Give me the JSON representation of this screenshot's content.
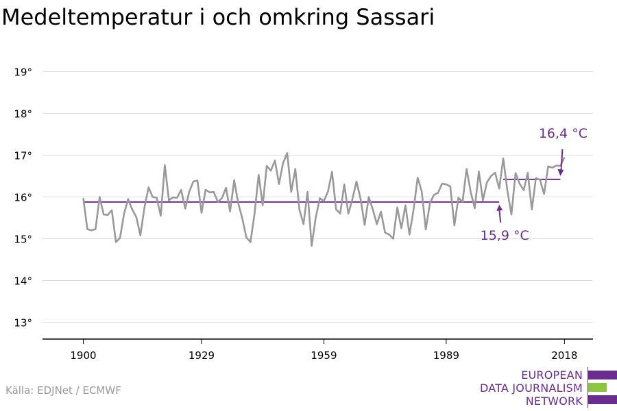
{
  "chart_data": {
    "type": "line",
    "title": "Medeltemperatur i och omkring Sassari",
    "x_ticks": [
      1900,
      1929,
      1959,
      1989,
      2018
    ],
    "x_tick_labels": [
      "1900",
      "1929",
      "1959",
      "1989",
      "2018"
    ],
    "y_ticks": [
      13,
      14,
      15,
      16,
      17,
      18,
      19
    ],
    "y_tick_labels": [
      "13°",
      "14°",
      "15°",
      "16°",
      "17°",
      "18°",
      "19°"
    ],
    "xlim": [
      1890,
      2025
    ],
    "ylim": [
      12.6,
      19.4
    ],
    "grid": true,
    "series": [
      {
        "x": [
          1900,
          1901,
          1902,
          1903,
          1904,
          1905,
          1906,
          1907,
          1908,
          1909,
          1910,
          1911,
          1912,
          1913,
          1914,
          1915,
          1916,
          1917,
          1918,
          1919,
          1920,
          1921,
          1922,
          1923,
          1924,
          1925,
          1926,
          1927,
          1928,
          1929,
          1930,
          1931,
          1932,
          1933,
          1934,
          1935,
          1936,
          1937,
          1938,
          1939,
          1940,
          1941,
          1942,
          1943,
          1944,
          1945,
          1946,
          1947,
          1948,
          1949,
          1950,
          1951,
          1952,
          1953,
          1954,
          1955,
          1956,
          1957,
          1958,
          1959,
          1960,
          1961,
          1962,
          1963,
          1964,
          1965,
          1966,
          1967,
          1968,
          1969,
          1970,
          1971,
          1972,
          1973,
          1974,
          1975,
          1976,
          1977,
          1978,
          1979,
          1980,
          1981,
          1982,
          1983,
          1984,
          1985,
          1986,
          1987,
          1988,
          1989,
          1990,
          1991,
          1992,
          1993,
          1994,
          1995,
          1996,
          1997,
          1998,
          1999,
          2000,
          2001,
          2002,
          2003,
          2004,
          2005,
          2006,
          2007,
          2008,
          2009,
          2010,
          2011,
          2012,
          2013,
          2014,
          2015,
          2016,
          2017,
          2018
        ],
        "values": [
          15.97,
          15.23,
          15.2,
          15.23,
          16.0,
          15.58,
          15.57,
          15.68,
          14.92,
          15.02,
          15.6,
          15.95,
          15.7,
          15.52,
          15.08,
          15.75,
          16.23,
          16.0,
          15.98,
          15.55,
          16.76,
          15.92,
          15.99,
          15.98,
          16.17,
          15.72,
          16.13,
          16.37,
          16.39,
          15.62,
          16.17,
          16.11,
          16.12,
          15.88,
          15.97,
          16.22,
          15.65,
          16.4,
          15.85,
          15.48,
          15.03,
          14.92,
          15.6,
          16.53,
          15.8,
          16.74,
          16.63,
          16.87,
          16.31,
          16.81,
          17.05,
          16.12,
          16.67,
          15.7,
          15.35,
          16.12,
          14.83,
          15.5,
          15.97,
          15.9,
          16.13,
          16.6,
          15.7,
          15.6,
          16.3,
          15.6,
          15.95,
          16.37,
          15.95,
          15.33,
          16.0,
          15.7,
          15.35,
          15.65,
          15.15,
          15.1,
          15.0,
          15.75,
          15.25,
          15.8,
          15.1,
          15.7,
          16.46,
          16.13,
          15.22,
          15.85,
          16.05,
          16.1,
          16.32,
          16.3,
          16.25,
          15.32,
          15.98,
          15.88,
          16.67,
          16.12,
          15.73,
          16.61,
          15.92,
          16.35,
          16.5,
          16.58,
          16.2,
          16.92,
          16.15,
          15.58,
          16.57,
          16.32,
          16.16,
          16.58,
          15.7,
          16.45,
          16.41,
          16.07,
          16.73,
          16.7,
          16.75,
          16.74,
          16.95
        ]
      }
    ],
    "averages": [
      {
        "from": 1900,
        "to": 2002,
        "value": 15.88,
        "label": "15,9 °C"
      },
      {
        "from": 2003,
        "to": 2017,
        "value": 16.42,
        "label": "16,4 °C"
      }
    ],
    "colors": {
      "line": "#999999",
      "average": "#6a2c91",
      "grid": "#dddddd",
      "axis": "#000000"
    }
  },
  "source": "Källa: EDJNet / ECMWF",
  "logo": {
    "lines": [
      "EUROPEAN",
      "DATA JOURNALISM",
      "NETWORK"
    ],
    "colors": [
      "#6a2c91",
      "#8cc63f",
      "#6a2c91"
    ]
  }
}
